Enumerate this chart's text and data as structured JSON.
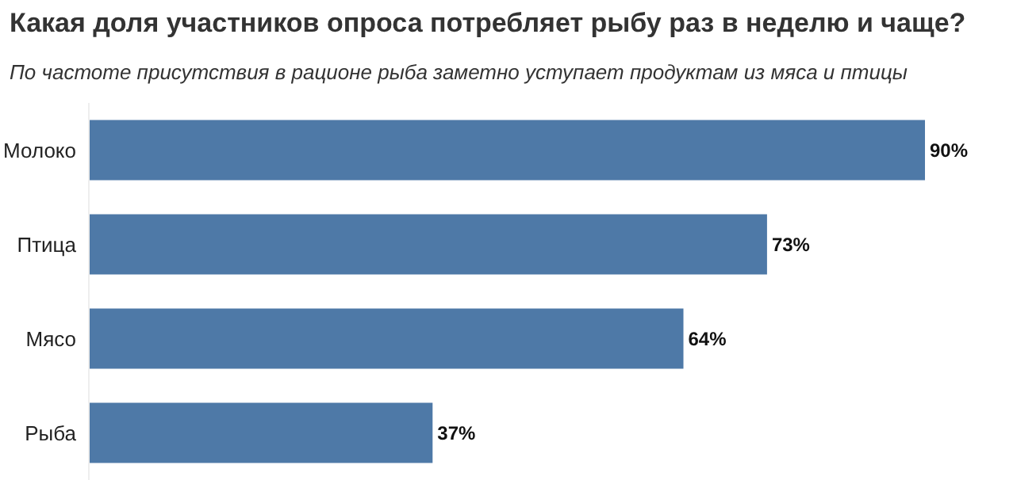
{
  "chart_data": {
    "type": "bar",
    "orientation": "horizontal",
    "title": "Какая доля участников опроса потребляет рыбу раз в неделю и чаще?",
    "subtitle": "По частоте присутствия в рационе рыба заметно уступает продуктам из мяса и птицы",
    "categories": [
      "Молоко",
      "Птица",
      "Мясо",
      "Рыба"
    ],
    "values": [
      90,
      73,
      64,
      37
    ],
    "value_labels": [
      "90%",
      "73%",
      "64%",
      "37%"
    ],
    "color": "#4e79a7"
  }
}
